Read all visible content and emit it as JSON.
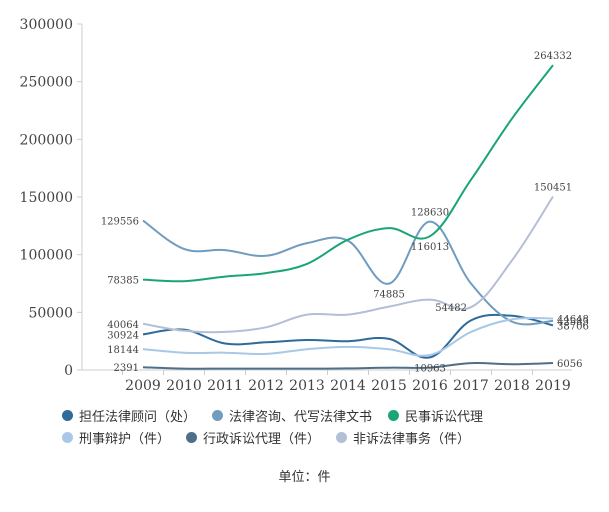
{
  "chart_data": {
    "type": "line",
    "categories": [
      "2009",
      "2010",
      "2011",
      "2012",
      "2013",
      "2014",
      "2015",
      "2016",
      "2017",
      "2018",
      "2019"
    ],
    "x_tick_labels": [
      "2009",
      "2010",
      "2011",
      "2012",
      "2013",
      "2014",
      "2015",
      "2016",
      "2017",
      "2018",
      "2019"
    ],
    "ylim": [
      0,
      300000
    ],
    "y_ticks": [
      0,
      50000,
      100000,
      150000,
      200000,
      250000,
      300000
    ],
    "y_tick_labels": [
      "0",
      "50000",
      "100000",
      "150000",
      "200000",
      "250000",
      "300000"
    ],
    "unit_label": "单位：件",
    "legend_position": "bottom",
    "series": [
      {
        "name": "担任法律顾问（处）",
        "color": "#2e6b9a",
        "values": [
          30924,
          35000,
          23000,
          24000,
          26000,
          25000,
          27000,
          10963,
          43000,
          47000,
          38706
        ],
        "labels": [
          {
            "index": 0,
            "text": "30924",
            "pos": "left"
          },
          {
            "index": 7,
            "text": "10963",
            "pos": "below"
          },
          {
            "index": 10,
            "text": "38706",
            "pos": "right"
          }
        ]
      },
      {
        "name": "法律咨询、代写法律文书",
        "color": "#6f9cc1",
        "values": [
          129556,
          105000,
          104000,
          99000,
          110000,
          112000,
          74885,
          128630,
          75000,
          42000,
          42583
        ],
        "labels": [
          {
            "index": 0,
            "text": "129556",
            "pos": "left"
          },
          {
            "index": 6,
            "text": "74885",
            "pos": "below"
          },
          {
            "index": 7,
            "text": "128630",
            "pos": "above"
          },
          {
            "index": 10,
            "text": "42583",
            "pos": "right"
          }
        ]
      },
      {
        "name": "民事诉讼代理",
        "color": "#1aa574",
        "values": [
          78385,
          77000,
          81000,
          84000,
          92000,
          113000,
          123000,
          116013,
          165000,
          218000,
          264332
        ],
        "labels": [
          {
            "index": 0,
            "text": "78385",
            "pos": "left"
          },
          {
            "index": 7,
            "text": "116013",
            "pos": "below"
          },
          {
            "index": 10,
            "text": "264332",
            "pos": "above"
          }
        ]
      },
      {
        "name": "刑事辩护（件）",
        "color": "#a8c8e6",
        "values": [
          18144,
          15000,
          15000,
          14000,
          18000,
          20000,
          18000,
          13000,
          33000,
          44000,
          44648
        ],
        "labels": [
          {
            "index": 0,
            "text": "18144",
            "pos": "left"
          },
          {
            "index": 10,
            "text": "44648",
            "pos": "right"
          }
        ]
      },
      {
        "name": "行政诉讼代理（件）",
        "color": "#4f6f88",
        "values": [
          2391,
          1200,
          1200,
          1200,
          1200,
          1400,
          2000,
          2100,
          6000,
          5000,
          6056
        ],
        "labels": [
          {
            "index": 0,
            "text": "2391",
            "pos": "left"
          },
          {
            "index": 10,
            "text": "6056",
            "pos": "right"
          }
        ]
      },
      {
        "name": "非诉法律事务（件）",
        "color": "#b3bfd6",
        "values": [
          40064,
          34000,
          33000,
          37000,
          48000,
          48000,
          55000,
          61000,
          54482,
          95000,
          150451
        ],
        "labels": [
          {
            "index": 0,
            "text": "40064",
            "pos": "left"
          },
          {
            "index": 8,
            "text": "54482",
            "pos": "left"
          },
          {
            "index": 10,
            "text": "150451",
            "pos": "above"
          }
        ]
      }
    ]
  }
}
